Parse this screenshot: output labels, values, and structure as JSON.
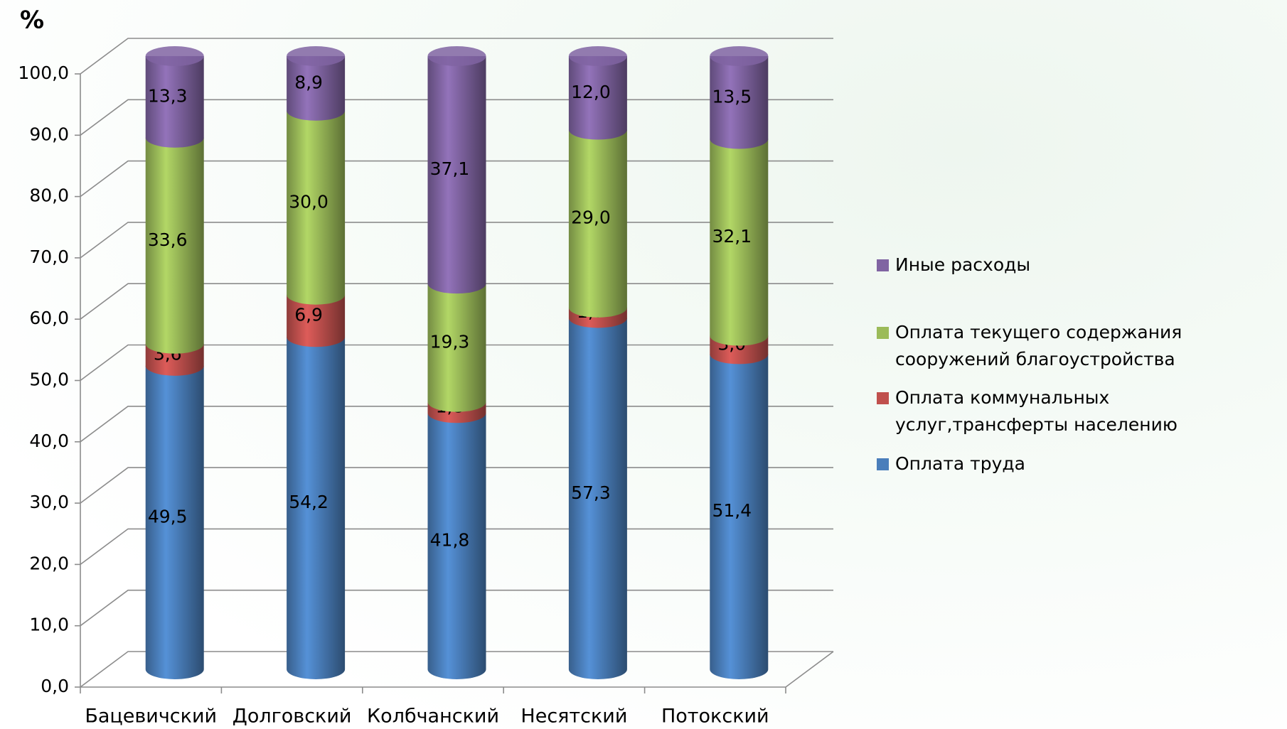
{
  "chart_data": {
    "type": "stacked_bar_3d",
    "ylabel": "%",
    "categories": [
      "Бацевичский",
      "Долговский",
      "Колбчанский",
      "Несятский",
      "Потокский"
    ],
    "series": [
      {
        "name": "Оплата труда",
        "color": "#4a7ebb",
        "values": [
          49.5,
          54.2,
          41.8,
          57.3,
          51.4
        ],
        "value_labels": [
          "49,5",
          "54,2",
          "41,8",
          "57,3",
          "51,4"
        ]
      },
      {
        "name": "Оплата коммунальных услуг,трансферты населению",
        "color": "#c0504d",
        "values": [
          3.6,
          6.9,
          1.8,
          1.7,
          3.0
        ],
        "value_labels": [
          "3,6",
          "6,9",
          "1,8",
          "1,7",
          "3,0"
        ]
      },
      {
        "name": "Оплата текущего содержания сооружений благоустройства",
        "color": "#9bbb59",
        "values": [
          33.6,
          30.0,
          19.3,
          29.0,
          32.1
        ],
        "value_labels": [
          "33,6",
          "30,0",
          "19,3",
          "29,0",
          "32,1"
        ]
      },
      {
        "name": "Иные расходы",
        "color": "#8064a2",
        "values": [
          13.3,
          8.9,
          37.1,
          12.0,
          13.5
        ],
        "value_labels": [
          "13,3",
          "8,9",
          "37,1",
          "12,0",
          "13,5"
        ]
      }
    ],
    "ylim": [
      0,
      100
    ],
    "yticks": [
      {
        "value": 0,
        "label": "0,0"
      },
      {
        "value": 10,
        "label": "10,0"
      },
      {
        "value": 20,
        "label": "20,0"
      },
      {
        "value": 30,
        "label": "30,0"
      },
      {
        "value": 40,
        "label": "40,0"
      },
      {
        "value": 50,
        "label": "50,0"
      },
      {
        "value": 60,
        "label": "60,0"
      },
      {
        "value": 70,
        "label": "70,0"
      },
      {
        "value": 80,
        "label": "80,0"
      },
      {
        "value": 90,
        "label": "90,0"
      },
      {
        "value": 100,
        "label": "100,0"
      }
    ],
    "grid": true,
    "legend": "right"
  }
}
